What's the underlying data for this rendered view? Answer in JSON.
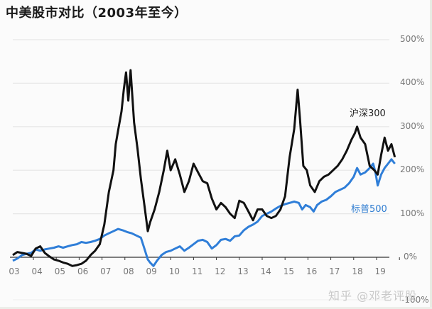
{
  "title": "中美股市对比（2003年至今）",
  "watermark": "知乎 @邓老评股",
  "colors": {
    "csi300": "#111111",
    "sp500": "#2f7ed8",
    "grid": "#e6e6e6",
    "axis": "#333333"
  },
  "y_axis": {
    "ticks": [
      "500%",
      "400%",
      "300%",
      "200%",
      "100%",
      "0%",
      "-100%"
    ]
  },
  "x_axis": {
    "ticks": [
      "03",
      "04",
      "05",
      "06",
      "07",
      "08",
      "09",
      "10",
      "11",
      "12",
      "13",
      "14",
      "15",
      "16",
      "17",
      "18",
      "19"
    ]
  },
  "legend": {
    "csi300": "沪深300",
    "sp500": "标普500"
  },
  "chart_data": {
    "type": "line",
    "title": "中美股市对比（2003年至今）",
    "xlabel": "",
    "ylabel": "",
    "x_ticks": [
      "03",
      "04",
      "05",
      "06",
      "07",
      "08",
      "09",
      "10",
      "11",
      "12",
      "13",
      "14",
      "15",
      "16",
      "17",
      "18",
      "19"
    ],
    "y_ticks": [
      "-100%",
      "0%",
      "100%",
      "200%",
      "300%",
      "400%",
      "500%"
    ],
    "ylim": [
      -100,
      500
    ],
    "xlim": [
      2003,
      2019.7
    ],
    "grid": true,
    "legend_position": "inline labels at right",
    "series": [
      {
        "name": "沪深300",
        "color": "#111111",
        "points": [
          [
            2003.0,
            5
          ],
          [
            2003.2,
            12
          ],
          [
            2003.4,
            10
          ],
          [
            2003.6,
            8
          ],
          [
            2003.8,
            3
          ],
          [
            2004.0,
            20
          ],
          [
            2004.2,
            25
          ],
          [
            2004.4,
            10
          ],
          [
            2004.6,
            2
          ],
          [
            2004.8,
            -5
          ],
          [
            2005.0,
            -8
          ],
          [
            2005.2,
            -12
          ],
          [
            2005.4,
            -15
          ],
          [
            2005.6,
            -20
          ],
          [
            2005.8,
            -18
          ],
          [
            2006.0,
            -15
          ],
          [
            2006.2,
            -8
          ],
          [
            2006.4,
            5
          ],
          [
            2006.6,
            15
          ],
          [
            2006.8,
            30
          ],
          [
            2007.0,
            75
          ],
          [
            2007.2,
            150
          ],
          [
            2007.4,
            200
          ],
          [
            2007.5,
            260
          ],
          [
            2007.6,
            290
          ],
          [
            2007.75,
            335
          ],
          [
            2007.85,
            385
          ],
          [
            2007.95,
            425
          ],
          [
            2008.05,
            360
          ],
          [
            2008.15,
            430
          ],
          [
            2008.3,
            310
          ],
          [
            2008.45,
            250
          ],
          [
            2008.6,
            180
          ],
          [
            2008.75,
            120
          ],
          [
            2008.9,
            60
          ],
          [
            2009.0,
            80
          ],
          [
            2009.2,
            110
          ],
          [
            2009.4,
            150
          ],
          [
            2009.6,
            200
          ],
          [
            2009.75,
            245
          ],
          [
            2009.9,
            200
          ],
          [
            2010.1,
            225
          ],
          [
            2010.3,
            190
          ],
          [
            2010.5,
            150
          ],
          [
            2010.7,
            175
          ],
          [
            2010.9,
            215
          ],
          [
            2011.1,
            195
          ],
          [
            2011.3,
            175
          ],
          [
            2011.5,
            170
          ],
          [
            2011.7,
            135
          ],
          [
            2011.9,
            110
          ],
          [
            2012.1,
            125
          ],
          [
            2012.3,
            115
          ],
          [
            2012.5,
            100
          ],
          [
            2012.7,
            90
          ],
          [
            2012.9,
            130
          ],
          [
            2013.1,
            125
          ],
          [
            2013.3,
            105
          ],
          [
            2013.5,
            85
          ],
          [
            2013.7,
            110
          ],
          [
            2013.9,
            110
          ],
          [
            2014.1,
            95
          ],
          [
            2014.3,
            90
          ],
          [
            2014.5,
            95
          ],
          [
            2014.7,
            110
          ],
          [
            2014.9,
            140
          ],
          [
            2015.1,
            230
          ],
          [
            2015.3,
            295
          ],
          [
            2015.45,
            385
          ],
          [
            2015.55,
            320
          ],
          [
            2015.7,
            210
          ],
          [
            2015.85,
            200
          ],
          [
            2016.0,
            165
          ],
          [
            2016.2,
            150
          ],
          [
            2016.4,
            175
          ],
          [
            2016.6,
            185
          ],
          [
            2016.8,
            190
          ],
          [
            2017.0,
            200
          ],
          [
            2017.2,
            210
          ],
          [
            2017.4,
            225
          ],
          [
            2017.6,
            245
          ],
          [
            2017.8,
            270
          ],
          [
            2017.95,
            285
          ],
          [
            2018.05,
            300
          ],
          [
            2018.2,
            275
          ],
          [
            2018.4,
            260
          ],
          [
            2018.6,
            210
          ],
          [
            2018.8,
            200
          ],
          [
            2018.95,
            190
          ],
          [
            2019.1,
            235
          ],
          [
            2019.25,
            275
          ],
          [
            2019.4,
            245
          ],
          [
            2019.55,
            260
          ],
          [
            2019.7,
            230
          ]
        ]
      },
      {
        "name": "标普500",
        "color": "#2f7ed8",
        "points": [
          [
            2003.0,
            -8
          ],
          [
            2003.2,
            -3
          ],
          [
            2003.4,
            5
          ],
          [
            2003.6,
            8
          ],
          [
            2003.8,
            10
          ],
          [
            2004.0,
            18
          ],
          [
            2004.2,
            15
          ],
          [
            2004.4,
            18
          ],
          [
            2004.6,
            20
          ],
          [
            2004.8,
            22
          ],
          [
            2005.0,
            25
          ],
          [
            2005.2,
            22
          ],
          [
            2005.4,
            25
          ],
          [
            2005.6,
            28
          ],
          [
            2005.8,
            30
          ],
          [
            2006.0,
            35
          ],
          [
            2006.2,
            33
          ],
          [
            2006.4,
            35
          ],
          [
            2006.6,
            38
          ],
          [
            2006.8,
            42
          ],
          [
            2007.0,
            50
          ],
          [
            2007.2,
            55
          ],
          [
            2007.4,
            60
          ],
          [
            2007.6,
            65
          ],
          [
            2007.8,
            62
          ],
          [
            2008.0,
            58
          ],
          [
            2008.2,
            55
          ],
          [
            2008.4,
            50
          ],
          [
            2008.6,
            45
          ],
          [
            2008.75,
            20
          ],
          [
            2008.9,
            -5
          ],
          [
            2009.0,
            -12
          ],
          [
            2009.15,
            -20
          ],
          [
            2009.3,
            -8
          ],
          [
            2009.5,
            5
          ],
          [
            2009.7,
            12
          ],
          [
            2009.9,
            15
          ],
          [
            2010.1,
            20
          ],
          [
            2010.3,
            25
          ],
          [
            2010.5,
            15
          ],
          [
            2010.7,
            22
          ],
          [
            2010.9,
            30
          ],
          [
            2011.1,
            38
          ],
          [
            2011.3,
            40
          ],
          [
            2011.5,
            35
          ],
          [
            2011.7,
            20
          ],
          [
            2011.9,
            28
          ],
          [
            2012.1,
            40
          ],
          [
            2012.3,
            42
          ],
          [
            2012.5,
            38
          ],
          [
            2012.7,
            48
          ],
          [
            2012.9,
            50
          ],
          [
            2013.1,
            62
          ],
          [
            2013.3,
            70
          ],
          [
            2013.5,
            75
          ],
          [
            2013.7,
            82
          ],
          [
            2013.9,
            95
          ],
          [
            2014.1,
            100
          ],
          [
            2014.3,
            105
          ],
          [
            2014.5,
            112
          ],
          [
            2014.7,
            118
          ],
          [
            2014.9,
            122
          ],
          [
            2015.1,
            125
          ],
          [
            2015.3,
            128
          ],
          [
            2015.5,
            125
          ],
          [
            2015.65,
            110
          ],
          [
            2015.8,
            120
          ],
          [
            2016.0,
            115
          ],
          [
            2016.15,
            105
          ],
          [
            2016.3,
            120
          ],
          [
            2016.5,
            128
          ],
          [
            2016.7,
            132
          ],
          [
            2016.9,
            140
          ],
          [
            2017.1,
            150
          ],
          [
            2017.3,
            155
          ],
          [
            2017.5,
            160
          ],
          [
            2017.7,
            170
          ],
          [
            2017.9,
            185
          ],
          [
            2018.05,
            205
          ],
          [
            2018.2,
            190
          ],
          [
            2018.4,
            195
          ],
          [
            2018.6,
            205
          ],
          [
            2018.75,
            215
          ],
          [
            2018.85,
            195
          ],
          [
            2018.95,
            165
          ],
          [
            2019.1,
            190
          ],
          [
            2019.25,
            205
          ],
          [
            2019.4,
            215
          ],
          [
            2019.55,
            225
          ],
          [
            2019.7,
            215
          ]
        ]
      }
    ]
  }
}
